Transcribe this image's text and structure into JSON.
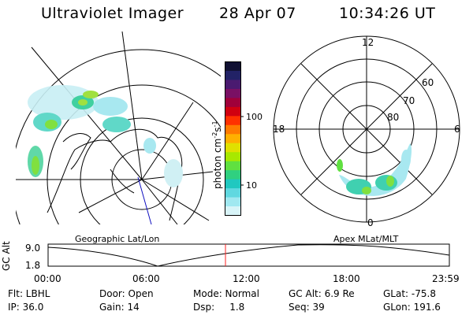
{
  "header": {
    "instrument": "Ultraviolet Imager",
    "date": "28 Apr 07",
    "time": "10:34:26 UT"
  },
  "colorbar": {
    "unit_label": "photon cm",
    "unit_sup1": "-2",
    "unit_mid": "s",
    "unit_sup2": "-1",
    "ticks": [
      "100",
      "10"
    ],
    "colors": [
      "#111133",
      "#222266",
      "#4a1a70",
      "#7a1064",
      "#a0003a",
      "#d00010",
      "#ff3000",
      "#ff7a00",
      "#ffb000",
      "#e0e000",
      "#a8e800",
      "#60e040",
      "#30d080",
      "#20c8c0",
      "#60d8e0",
      "#a0e8f0",
      "#d8f4f8"
    ]
  },
  "left_panel": {
    "label": "Geographic Lat/Lon"
  },
  "right_panel": {
    "label": "Apex MLat/MLT",
    "mlt_labels": {
      "top": "12",
      "left": "18",
      "right": "6",
      "bottom": "0"
    },
    "lat_labels": [
      "60",
      "70",
      "80"
    ]
  },
  "altitude_plot": {
    "ylabel": "GC Alt",
    "yticks": [
      "9.0",
      "1.8"
    ],
    "xticks": [
      "00:00",
      "06:00",
      "12:00",
      "18:00",
      "23:59"
    ],
    "current_time_marker": "10:34"
  },
  "info_rows": [
    [
      "Flt: LBHL",
      "Door: Open",
      "Mode: Normal",
      "GC Alt: 6.9 Re",
      "GLat: -75.8"
    ],
    [
      "IP: 36.0",
      "Gain: 14",
      "Dsp:     1.8",
      "Seq: 39",
      "GLon: 191.6"
    ]
  ]
}
